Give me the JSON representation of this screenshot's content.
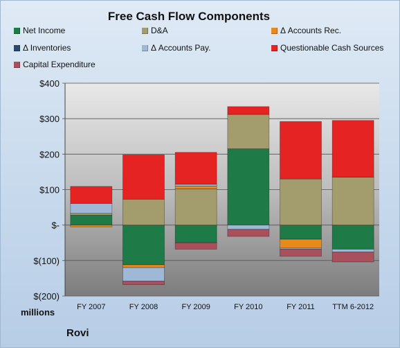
{
  "chart_data": {
    "type": "bar",
    "stacked": true,
    "title": "Free Cash Flow Components",
    "ylabel": "",
    "xlabel": "",
    "units_label": "millions",
    "company_label": "Rovi",
    "ylim": [
      -200,
      400
    ],
    "yticks": [
      -200,
      -100,
      0,
      100,
      200,
      300,
      400
    ],
    "ytick_labels": [
      "$(200)",
      "$(100)",
      "$-",
      "$100",
      "$200",
      "$300",
      "$400"
    ],
    "categories": [
      "FY 2007",
      "FY 2008",
      "FY 2009",
      "FY 2010",
      "FY 2011",
      "TTM 6-2012"
    ],
    "grid": true,
    "legend_position": "top",
    "series": [
      {
        "name": "Net Income",
        "color": "#1e7a46",
        "values": [
          28,
          -112,
          -50,
          215,
          -40,
          -68
        ]
      },
      {
        "name": "D&A",
        "color": "#a39c6c",
        "values": [
          5,
          73,
          102,
          97,
          130,
          135
        ]
      },
      {
        "name": "Δ Accounts Rec.",
        "color": "#e8891b",
        "values": [
          -5,
          -8,
          8,
          0,
          -25,
          0
        ]
      },
      {
        "name": "Δ Inventories",
        "color": "#2a4a6c",
        "values": [
          0,
          0,
          0,
          0,
          0,
          0
        ]
      },
      {
        "name": "Δ Accounts Pay.",
        "color": "#9fb8d6",
        "values": [
          28,
          -38,
          5,
          -12,
          -3,
          -8
        ]
      },
      {
        "name": "Questionable Cash Sources",
        "color": "#e62323",
        "values": [
          48,
          125,
          90,
          22,
          162,
          160
        ]
      },
      {
        "name": "Capital Expenditure",
        "color": "#a9505c",
        "values": [
          0,
          -10,
          -18,
          -20,
          -20,
          -28
        ]
      }
    ]
  }
}
